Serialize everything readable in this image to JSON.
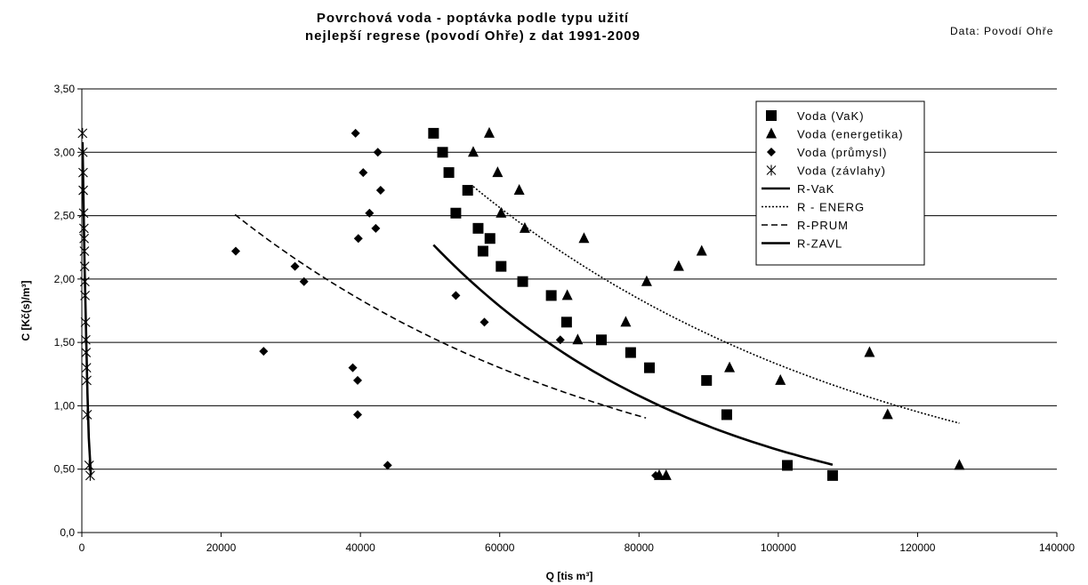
{
  "chart_data": {
    "type": "scatter",
    "title": "Povrchová voda  - poptávka podle typu užití",
    "subtitle": "nejlepší regrese (povodí Ohře) z dat 1991-2009",
    "source_note": "Data: Povodí Ohře",
    "xlabel": "Q [tis m³]",
    "ylabel": "C [Kč(s)/m³]",
    "xlim": [
      0,
      140000
    ],
    "ylim": [
      0,
      3.5
    ],
    "x_ticks": [
      0,
      20000,
      40000,
      60000,
      80000,
      100000,
      120000,
      140000
    ],
    "x_tick_labels": [
      "0",
      "20000",
      "40000",
      "60000",
      "80000",
      "100000",
      "120000",
      "140000"
    ],
    "y_ticks": [
      0,
      0.5,
      1.0,
      1.5,
      2.0,
      2.5,
      3.0,
      3.5
    ],
    "y_tick_labels": [
      "0,0",
      "0,50",
      "1,00",
      "1,50",
      "2,00",
      "2,50",
      "3,00",
      "3,50"
    ],
    "grid": "horizontal",
    "legend_position": "top-right",
    "series": [
      {
        "name": "Voda (VaK)",
        "kind": "points",
        "marker": "square",
        "points": [
          [
            50500,
            3.15
          ],
          [
            51800,
            3.0
          ],
          [
            52700,
            2.84
          ],
          [
            53700,
            2.52
          ],
          [
            55400,
            2.7
          ],
          [
            56900,
            2.4
          ],
          [
            57600,
            2.22
          ],
          [
            58600,
            2.32
          ],
          [
            60200,
            2.1
          ],
          [
            63300,
            1.98
          ],
          [
            67400,
            1.87
          ],
          [
            69600,
            1.66
          ],
          [
            74600,
            1.52
          ],
          [
            78800,
            1.42
          ],
          [
            81500,
            1.3
          ],
          [
            89700,
            1.2
          ],
          [
            92600,
            0.93
          ],
          [
            101300,
            0.53
          ],
          [
            107800,
            0.45
          ]
        ]
      },
      {
        "name": "Voda  (energetika)",
        "kind": "points",
        "marker": "triangle",
        "points": [
          [
            56200,
            3.0
          ],
          [
            58500,
            3.15
          ],
          [
            59700,
            2.84
          ],
          [
            60200,
            2.52
          ],
          [
            62800,
            2.7
          ],
          [
            63600,
            2.4
          ],
          [
            69700,
            1.87
          ],
          [
            71200,
            1.52
          ],
          [
            72100,
            2.32
          ],
          [
            78100,
            1.66
          ],
          [
            81100,
            1.98
          ],
          [
            82900,
            0.45
          ],
          [
            83900,
            0.45
          ],
          [
            85700,
            2.1
          ],
          [
            89000,
            2.22
          ],
          [
            93000,
            1.3
          ],
          [
            100300,
            1.2
          ],
          [
            113100,
            1.42
          ],
          [
            115700,
            0.93
          ],
          [
            126000,
            0.53
          ]
        ]
      },
      {
        "name": "Voda (průmysl)",
        "kind": "points",
        "marker": "diamond",
        "points": [
          [
            22100,
            2.22
          ],
          [
            26100,
            1.43
          ],
          [
            30600,
            2.1
          ],
          [
            31900,
            1.98
          ],
          [
            38900,
            1.3
          ],
          [
            39300,
            3.15
          ],
          [
            39600,
            1.2
          ],
          [
            39600,
            0.93
          ],
          [
            39700,
            2.32
          ],
          [
            40400,
            2.84
          ],
          [
            41300,
            2.52
          ],
          [
            42200,
            2.4
          ],
          [
            42500,
            3.0
          ],
          [
            42900,
            2.7
          ],
          [
            43900,
            0.53
          ],
          [
            53700,
            1.87
          ],
          [
            57800,
            1.66
          ],
          [
            68700,
            1.52
          ],
          [
            82400,
            0.45
          ]
        ]
      },
      {
        "name": "Voda (závlahy)",
        "kind": "points",
        "marker": "star",
        "points": [
          [
            100,
            3.15
          ],
          [
            150,
            3.0
          ],
          [
            180,
            2.84
          ],
          [
            200,
            2.7
          ],
          [
            250,
            2.52
          ],
          [
            300,
            2.4
          ],
          [
            330,
            2.32
          ],
          [
            370,
            2.22
          ],
          [
            400,
            2.1
          ],
          [
            430,
            1.98
          ],
          [
            460,
            1.87
          ],
          [
            520,
            1.66
          ],
          [
            560,
            1.52
          ],
          [
            600,
            1.42
          ],
          [
            660,
            1.3
          ],
          [
            700,
            1.2
          ],
          [
            760,
            0.93
          ],
          [
            1050,
            0.53
          ],
          [
            1200,
            0.45
          ]
        ]
      },
      {
        "name": "R-VaK",
        "kind": "line",
        "style": "solid",
        "x_range": [
          50500,
          107800
        ],
        "fit": {
          "model": "exponential",
          "a": 8.1,
          "b": -2.52e-05
        }
      },
      {
        "name": "R - ENERG",
        "kind": "line",
        "style": "dotted",
        "x_range": [
          56200,
          126000
        ],
        "fit": {
          "model": "exponential",
          "a": 6.9,
          "b": -1.65e-05
        }
      },
      {
        "name": "R-PRUM",
        "kind": "line",
        "style": "dashed",
        "x_range": [
          22000,
          81000
        ],
        "fit": {
          "model": "exponential",
          "a": 3.67,
          "b": -1.73e-05
        }
      },
      {
        "name": "R-ZAVL",
        "kind": "line",
        "style": "solid",
        "points": [
          [
            100,
            3.08
          ],
          [
            250,
            2.55
          ],
          [
            400,
            2.1
          ],
          [
            600,
            1.6
          ],
          [
            800,
            1.1
          ],
          [
            1000,
            0.75
          ],
          [
            1300,
            0.45
          ]
        ]
      }
    ]
  }
}
